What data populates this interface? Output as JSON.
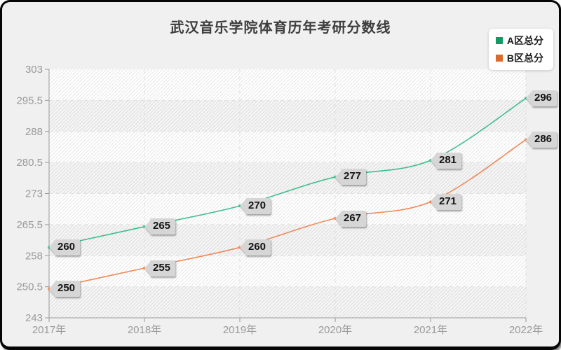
{
  "frame": {
    "background": "#f0f0f0",
    "border_color": "#060606"
  },
  "chart_data": {
    "type": "line",
    "title": "武汉音乐学院体育历年考研分数线",
    "categories": [
      "2017年",
      "2018年",
      "2019年",
      "2020年",
      "2021年",
      "2022年"
    ],
    "series": [
      {
        "name": "A区总分",
        "values": [
          260,
          265,
          270,
          277,
          281,
          296
        ],
        "line_color": "#3dbf8e",
        "legend_color": "#0e9c63"
      },
      {
        "name": "B区总分",
        "values": [
          250,
          255,
          260,
          267,
          271,
          286
        ],
        "line_color": "#ef8a5a",
        "legend_color": "#dd6a2d"
      }
    ],
    "y_ticks": [
      303,
      295.5,
      288,
      280.5,
      273,
      265.5,
      258,
      250.5,
      243
    ],
    "ylim": [
      243,
      303
    ],
    "grid": true,
    "smooth": true,
    "legend_position": "top-right",
    "axis_color": "#999999",
    "axis_text_color": "#9a9a9a",
    "gridline_color": "#e0e0e0",
    "band_overlay_color": "rgba(0,0,0,0.04)",
    "hatch_line_color": "#e7e7e7",
    "title_color": "#3e3e3e",
    "label_style": {
      "background": "#d6d6d6",
      "text_color": "#141414"
    }
  }
}
